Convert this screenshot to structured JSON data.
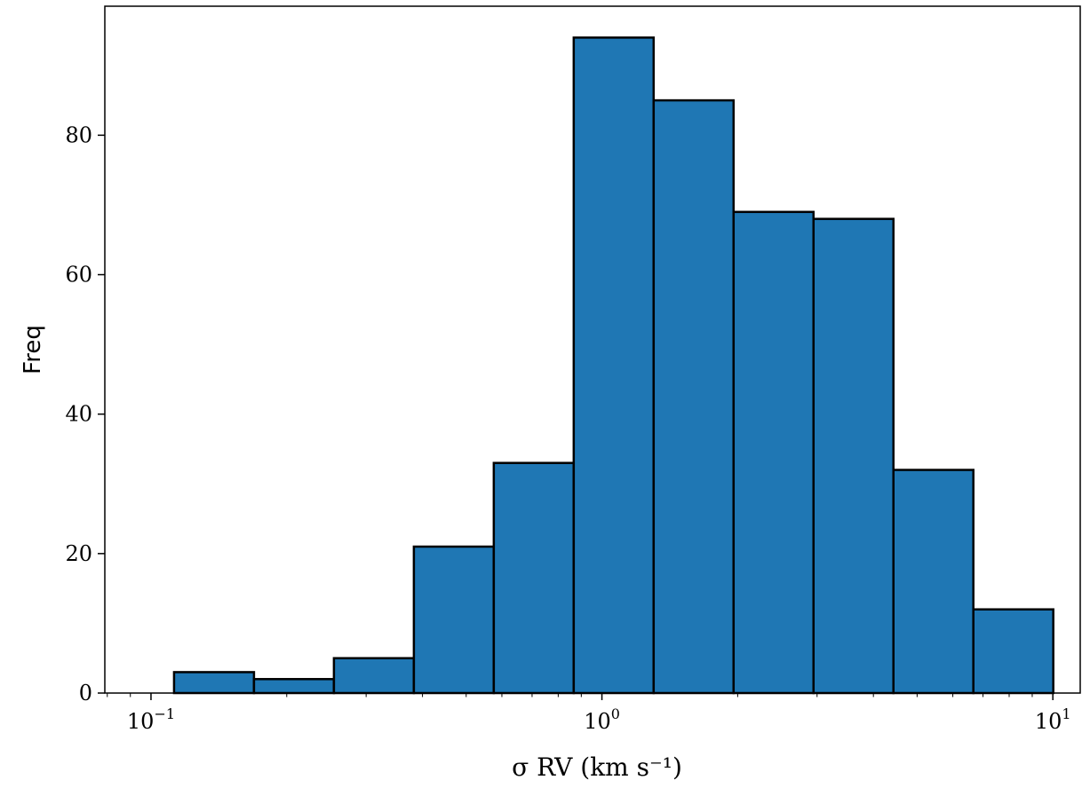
{
  "chart_data": {
    "type": "bar",
    "subtype": "histogram",
    "x_scale": "log",
    "xlim": [
      0.079,
      11.5
    ],
    "ylim": [
      0,
      98.5
    ],
    "bin_edges": [
      0.1125,
      0.1692,
      0.2545,
      0.3828,
      0.5757,
      0.8659,
      1.3023,
      1.9587,
      2.946,
      4.4308,
      6.664,
      10.0227
    ],
    "values": [
      3,
      2,
      5,
      21,
      33,
      94,
      85,
      69,
      68,
      32,
      12
    ],
    "bar_color": "#1f77b4",
    "edge_color": "#000000",
    "xlabel": "σ RV (km s⁻¹)",
    "ylabel": "Freq",
    "x_ticks": [
      {
        "value": 0.1,
        "base": "10",
        "exp": "−1"
      },
      {
        "value": 1,
        "base": "10",
        "exp": "0"
      },
      {
        "value": 10,
        "base": "10",
        "exp": "1"
      }
    ],
    "y_ticks": [
      0,
      20,
      40,
      60,
      80
    ],
    "grid": false,
    "legend": "none"
  }
}
